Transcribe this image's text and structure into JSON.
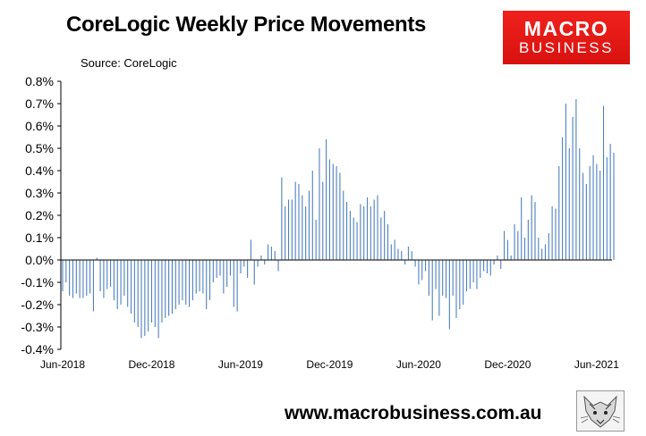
{
  "header": {
    "title": "CoreLogic Weekly Price Movements",
    "source": "Source: CoreLogic"
  },
  "logo": {
    "line1": "MACRO",
    "line2": "BUSINESS"
  },
  "footer": {
    "url": "www.macrobusiness.com.au"
  },
  "colors": {
    "bar": "#4f81bd",
    "logo_bg": "#e3171a",
    "axis": "#000000"
  },
  "chart_data": {
    "type": "bar",
    "title": "CoreLogic Weekly Price Movements",
    "xlabel": "",
    "ylabel": "",
    "ylim": [
      -0.4,
      0.8
    ],
    "ytick_labels": [
      "0.8%",
      "0.7%",
      "0.6%",
      "0.5%",
      "0.4%",
      "0.3%",
      "0.2%",
      "0.1%",
      "0.0%",
      "-0.1%",
      "-0.2%",
      "-0.3%",
      "-0.4%"
    ],
    "yticks": [
      0.8,
      0.7,
      0.6,
      0.5,
      0.4,
      0.3,
      0.2,
      0.1,
      0.0,
      -0.1,
      -0.2,
      -0.3,
      -0.4
    ],
    "xtick_labels": [
      "Jun-2018",
      "Dec-2018",
      "Jun-2019",
      "Dec-2019",
      "Jun-2020",
      "Dec-2020",
      "Jun-2021"
    ],
    "xtick_positions": [
      0,
      26,
      52,
      78,
      104,
      130,
      156
    ],
    "grid": false,
    "legend": "none",
    "series": [
      {
        "values": [
          -0.14,
          -0.1,
          -0.16,
          -0.17,
          -0.15,
          -0.17,
          -0.17,
          -0.16,
          -0.15,
          -0.23,
          0.01,
          -0.14,
          -0.17,
          -0.13,
          -0.12,
          -0.18,
          -0.22,
          -0.2,
          -0.16,
          -0.21,
          -0.24,
          -0.28,
          -0.3,
          -0.35,
          -0.34,
          -0.32,
          -0.28,
          -0.3,
          -0.35,
          -0.28,
          -0.26,
          -0.25,
          -0.24,
          -0.22,
          -0.2,
          -0.18,
          -0.2,
          -0.21,
          -0.18,
          -0.15,
          -0.14,
          -0.15,
          -0.22,
          -0.18,
          -0.1,
          -0.08,
          -0.07,
          -0.15,
          -0.12,
          -0.07,
          -0.21,
          -0.23,
          -0.06,
          -0.03,
          -0.08,
          0.09,
          -0.11,
          -0.03,
          0.02,
          -0.02,
          0.07,
          0.06,
          0.04,
          -0.05,
          0.37,
          0.24,
          0.27,
          0.27,
          0.35,
          0.34,
          0.29,
          0.24,
          0.31,
          0.4,
          0.18,
          0.5,
          0.35,
          0.54,
          0.45,
          0.43,
          0.42,
          0.39,
          0.31,
          0.26,
          0.22,
          0.19,
          0.17,
          0.25,
          0.24,
          0.28,
          0.24,
          0.27,
          0.29,
          0.19,
          0.22,
          0.16,
          0.07,
          0.09,
          0.05,
          0.04,
          -0.02,
          0.06,
          0.04,
          -0.03,
          -0.11,
          -0.09,
          -0.05,
          -0.16,
          -0.27,
          -0.13,
          -0.25,
          -0.16,
          -0.17,
          -0.31,
          -0.16,
          -0.26,
          -0.22,
          -0.2,
          -0.14,
          -0.13,
          -0.1,
          -0.13,
          -0.08,
          -0.05,
          -0.06,
          -0.07,
          -0.02,
          0.02,
          -0.04,
          0.13,
          0.09,
          0.02,
          0.16,
          0.13,
          0.28,
          0.1,
          0.18,
          0.29,
          0.26,
          0.1,
          0.05,
          0.07,
          0.12,
          0.24,
          0.23,
          0.42,
          0.55,
          0.7,
          0.5,
          0.64,
          0.72,
          0.5,
          0.39,
          0.34,
          0.42,
          0.47,
          0.43,
          0.4,
          0.69,
          0.46,
          0.52,
          0.48
        ]
      }
    ]
  }
}
